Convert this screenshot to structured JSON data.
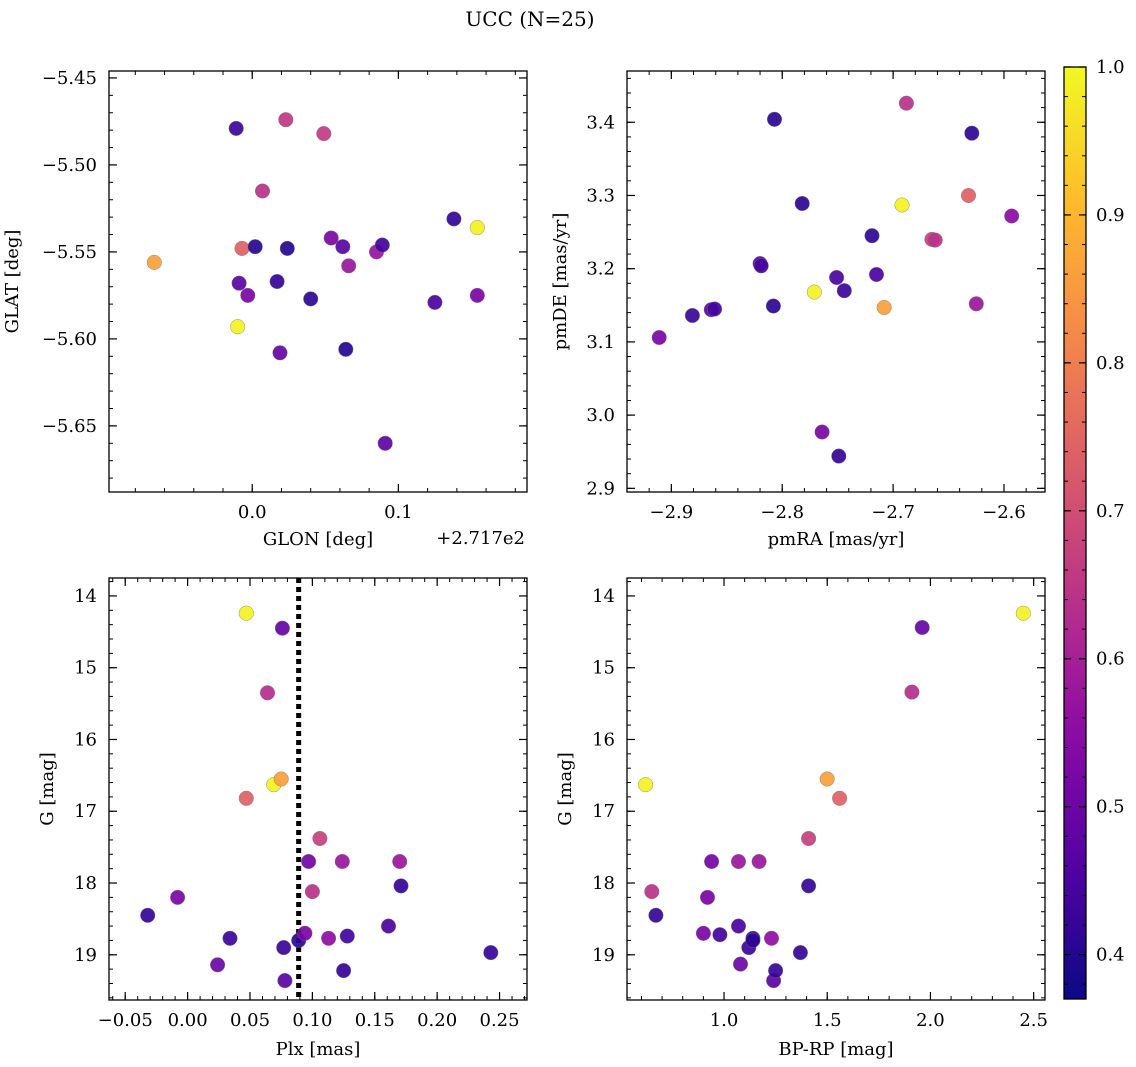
{
  "figure": {
    "title": "UCC (N=25)",
    "colorbar": {
      "min": 0.37,
      "max": 1.0,
      "ticks": [
        0.4,
        0.5,
        0.6,
        0.7,
        0.8,
        0.9,
        1.0
      ],
      "tick_labels": [
        "0.4",
        "0.5",
        "0.6",
        "0.7",
        "0.8",
        "0.9",
        "1.0"
      ],
      "colormap": "plasma"
    }
  },
  "chart_data": [
    {
      "id": "lonlat",
      "type": "scatter",
      "title": "",
      "xlabel": "GLON [deg]",
      "ylabel": "GLAT [deg]",
      "offset_text": "+2.717e2",
      "xlim": [
        -0.098,
        0.188
      ],
      "ylim": [
        -5.688,
        -5.446
      ],
      "y_inverted": false,
      "x_ticks": [
        0.0,
        0.1
      ],
      "x_tick_labels": [
        "0.0",
        "0.1"
      ],
      "y_ticks": [
        -5.5,
        -5.55,
        -5.6,
        -5.65,
        -5.45
      ],
      "y_tick_labels": [
        "−5.50",
        "−5.55",
        "−5.60",
        "−5.65",
        "−5.45"
      ],
      "grid": false,
      "vline": null,
      "points": [
        {
          "x": -0.067,
          "y": -5.556,
          "c": 0.86
        },
        {
          "x": -0.011,
          "y": -5.479,
          "c": 0.43
        },
        {
          "x": -0.01,
          "y": -5.593,
          "c": 0.99
        },
        {
          "x": -0.009,
          "y": -5.568,
          "c": 0.47
        },
        {
          "x": -0.007,
          "y": -5.548,
          "c": 0.74
        },
        {
          "x": -0.003,
          "y": -5.575,
          "c": 0.52
        },
        {
          "x": 0.002,
          "y": -5.547,
          "c": 0.4
        },
        {
          "x": 0.007,
          "y": -5.515,
          "c": 0.64
        },
        {
          "x": 0.017,
          "y": -5.567,
          "c": 0.42
        },
        {
          "x": 0.019,
          "y": -5.608,
          "c": 0.49
        },
        {
          "x": 0.023,
          "y": -5.474,
          "c": 0.65
        },
        {
          "x": 0.024,
          "y": -5.548,
          "c": 0.4
        },
        {
          "x": 0.04,
          "y": -5.577,
          "c": 0.41
        },
        {
          "x": 0.049,
          "y": -5.482,
          "c": 0.66
        },
        {
          "x": 0.054,
          "y": -5.542,
          "c": 0.52
        },
        {
          "x": 0.062,
          "y": -5.547,
          "c": 0.47
        },
        {
          "x": 0.064,
          "y": -5.606,
          "c": 0.4
        },
        {
          "x": 0.066,
          "y": -5.558,
          "c": 0.58
        },
        {
          "x": 0.085,
          "y": -5.55,
          "c": 0.57
        },
        {
          "x": 0.089,
          "y": -5.546,
          "c": 0.44
        },
        {
          "x": 0.091,
          "y": -5.66,
          "c": 0.48
        },
        {
          "x": 0.125,
          "y": -5.579,
          "c": 0.45
        },
        {
          "x": 0.138,
          "y": -5.531,
          "c": 0.42
        },
        {
          "x": 0.154,
          "y": -5.575,
          "c": 0.52
        },
        {
          "x": 0.154,
          "y": -5.536,
          "c": 0.99
        }
      ]
    },
    {
      "id": "pm",
      "type": "scatter",
      "title": "",
      "xlabel": "pmRA [mas/yr]",
      "ylabel": "pmDE [mas/yr]",
      "offset_text": "",
      "xlim": [
        -2.94,
        -2.563
      ],
      "ylim": [
        2.895,
        3.47
      ],
      "y_inverted": false,
      "x_ticks": [
        -2.9,
        -2.8,
        -2.7,
        -2.6
      ],
      "x_tick_labels": [
        "−2.9",
        "−2.8",
        "−2.7",
        "−2.6"
      ],
      "y_ticks": [
        2.9,
        3.0,
        3.1,
        3.2,
        3.3,
        3.4
      ],
      "y_tick_labels": [
        "2.9",
        "3.0",
        "3.1",
        "3.2",
        "3.3",
        "3.4"
      ],
      "grid": false,
      "vline": null,
      "points": [
        {
          "x": -2.911,
          "y": 3.106,
          "c": 0.52
        },
        {
          "x": -2.881,
          "y": 3.136,
          "c": 0.43
        },
        {
          "x": -2.864,
          "y": 3.144,
          "c": 0.47
        },
        {
          "x": -2.861,
          "y": 3.145,
          "c": 0.44
        },
        {
          "x": -2.82,
          "y": 3.207,
          "c": 0.47
        },
        {
          "x": -2.819,
          "y": 3.204,
          "c": 0.44
        },
        {
          "x": -2.808,
          "y": 3.149,
          "c": 0.41
        },
        {
          "x": -2.807,
          "y": 3.404,
          "c": 0.41
        },
        {
          "x": -2.782,
          "y": 3.289,
          "c": 0.41
        },
        {
          "x": -2.771,
          "y": 3.168,
          "c": 0.99
        },
        {
          "x": -2.764,
          "y": 2.977,
          "c": 0.52
        },
        {
          "x": -2.751,
          "y": 3.188,
          "c": 0.45
        },
        {
          "x": -2.749,
          "y": 2.944,
          "c": 0.42
        },
        {
          "x": -2.744,
          "y": 3.17,
          "c": 0.43
        },
        {
          "x": -2.719,
          "y": 3.245,
          "c": 0.41
        },
        {
          "x": -2.715,
          "y": 3.192,
          "c": 0.45
        },
        {
          "x": -2.708,
          "y": 3.147,
          "c": 0.86
        },
        {
          "x": -2.692,
          "y": 3.287,
          "c": 0.99
        },
        {
          "x": -2.688,
          "y": 3.426,
          "c": 0.64
        },
        {
          "x": -2.665,
          "y": 3.24,
          "c": 0.67
        },
        {
          "x": -2.662,
          "y": 3.239,
          "c": 0.64
        },
        {
          "x": -2.632,
          "y": 3.3,
          "c": 0.74
        },
        {
          "x": -2.629,
          "y": 3.385,
          "c": 0.41
        },
        {
          "x": -2.625,
          "y": 3.152,
          "c": 0.58
        },
        {
          "x": -2.593,
          "y": 3.272,
          "c": 0.55
        }
      ]
    },
    {
      "id": "plx",
      "type": "scatter",
      "title": "",
      "xlabel": "Plx [mas]",
      "ylabel": "G [mag]",
      "offset_text": "",
      "xlim": [
        -0.063,
        0.272
      ],
      "ylim": [
        19.63,
        13.75
      ],
      "y_inverted": true,
      "x_ticks": [
        -0.05,
        0.0,
        0.05,
        0.1,
        0.15,
        0.2,
        0.25
      ],
      "x_tick_labels": [
        "−0.05",
        "0.00",
        "0.05",
        "0.10",
        "0.15",
        "0.20",
        "0.25"
      ],
      "y_ticks": [
        14,
        15,
        16,
        17,
        18,
        19
      ],
      "y_tick_labels": [
        "14",
        "15",
        "16",
        "17",
        "18",
        "19"
      ],
      "grid": false,
      "vline": {
        "x": 0.089,
        "style": "dotted"
      },
      "points": [
        {
          "x": -0.032,
          "y": 18.45,
          "c": 0.42
        },
        {
          "x": -0.008,
          "y": 18.2,
          "c": 0.52
        },
        {
          "x": 0.024,
          "y": 19.14,
          "c": 0.5
        },
        {
          "x": 0.034,
          "y": 18.77,
          "c": 0.43
        },
        {
          "x": 0.047,
          "y": 14.24,
          "c": 0.99
        },
        {
          "x": 0.047,
          "y": 16.82,
          "c": 0.74
        },
        {
          "x": 0.064,
          "y": 15.35,
          "c": 0.63
        },
        {
          "x": 0.069,
          "y": 16.63,
          "c": 0.99
        },
        {
          "x": 0.075,
          "y": 16.55,
          "c": 0.86
        },
        {
          "x": 0.076,
          "y": 14.45,
          "c": 0.49
        },
        {
          "x": 0.077,
          "y": 18.9,
          "c": 0.43
        },
        {
          "x": 0.078,
          "y": 19.36,
          "c": 0.47
        },
        {
          "x": 0.089,
          "y": 18.8,
          "c": 0.41
        },
        {
          "x": 0.094,
          "y": 18.7,
          "c": 0.52
        },
        {
          "x": 0.097,
          "y": 17.7,
          "c": 0.51
        },
        {
          "x": 0.1,
          "y": 18.12,
          "c": 0.64
        },
        {
          "x": 0.106,
          "y": 17.38,
          "c": 0.67
        },
        {
          "x": 0.113,
          "y": 18.77,
          "c": 0.56
        },
        {
          "x": 0.124,
          "y": 17.7,
          "c": 0.58
        },
        {
          "x": 0.125,
          "y": 19.22,
          "c": 0.42
        },
        {
          "x": 0.128,
          "y": 18.74,
          "c": 0.44
        },
        {
          "x": 0.161,
          "y": 18.6,
          "c": 0.45
        },
        {
          "x": 0.17,
          "y": 17.7,
          "c": 0.58
        },
        {
          "x": 0.171,
          "y": 18.04,
          "c": 0.42
        },
        {
          "x": 0.243,
          "y": 18.97,
          "c": 0.42
        }
      ]
    },
    {
      "id": "cmd",
      "type": "scatter",
      "title": "",
      "xlabel": "BP-RP [mag]",
      "ylabel": "G [mag]",
      "offset_text": "",
      "xlim": [
        0.53,
        2.555
      ],
      "ylim": [
        19.63,
        13.75
      ],
      "y_inverted": true,
      "x_ticks": [
        1.0,
        1.5,
        2.0,
        2.5
      ],
      "x_tick_labels": [
        "1.0",
        "1.5",
        "2.0",
        "2.5"
      ],
      "y_ticks": [
        14,
        15,
        16,
        17,
        18,
        19
      ],
      "y_tick_labels": [
        "14",
        "15",
        "16",
        "17",
        "18",
        "19"
      ],
      "grid": false,
      "vline": null,
      "points": [
        {
          "x": 0.62,
          "y": 16.63,
          "c": 0.99
        },
        {
          "x": 0.65,
          "y": 18.12,
          "c": 0.64
        },
        {
          "x": 0.67,
          "y": 18.45,
          "c": 0.42
        },
        {
          "x": 0.9,
          "y": 18.7,
          "c": 0.52
        },
        {
          "x": 0.92,
          "y": 18.2,
          "c": 0.52
        },
        {
          "x": 0.94,
          "y": 17.7,
          "c": 0.51
        },
        {
          "x": 0.98,
          "y": 18.72,
          "c": 0.44
        },
        {
          "x": 1.07,
          "y": 17.7,
          "c": 0.58
        },
        {
          "x": 1.07,
          "y": 18.6,
          "c": 0.45
        },
        {
          "x": 1.08,
          "y": 19.13,
          "c": 0.5
        },
        {
          "x": 1.12,
          "y": 18.9,
          "c": 0.43
        },
        {
          "x": 1.14,
          "y": 18.77,
          "c": 0.43
        },
        {
          "x": 1.14,
          "y": 18.8,
          "c": 0.41
        },
        {
          "x": 1.17,
          "y": 17.7,
          "c": 0.58
        },
        {
          "x": 1.23,
          "y": 18.77,
          "c": 0.56
        },
        {
          "x": 1.24,
          "y": 19.36,
          "c": 0.47
        },
        {
          "x": 1.25,
          "y": 19.22,
          "c": 0.42
        },
        {
          "x": 1.37,
          "y": 18.97,
          "c": 0.42
        },
        {
          "x": 1.41,
          "y": 17.38,
          "c": 0.67
        },
        {
          "x": 1.41,
          "y": 18.04,
          "c": 0.42
        },
        {
          "x": 1.5,
          "y": 16.55,
          "c": 0.86
        },
        {
          "x": 1.56,
          "y": 16.82,
          "c": 0.74
        },
        {
          "x": 1.91,
          "y": 15.34,
          "c": 0.63
        },
        {
          "x": 1.96,
          "y": 14.44,
          "c": 0.49
        },
        {
          "x": 2.45,
          "y": 14.24,
          "c": 0.99
        }
      ]
    }
  ]
}
